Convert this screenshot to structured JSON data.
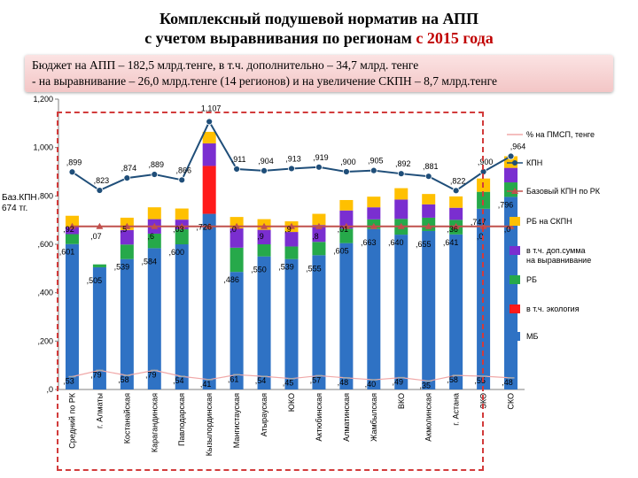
{
  "header": {
    "title_line1": "Комплексный подушевой норматив на АПП",
    "title_line2_start": "с учетом выравнивания по регионам ",
    "title_line2_year": "с 2015 года"
  },
  "budget_note": {
    "line1": "Бюджет на АПП – 182,5 млрд.тенге, в т.ч. дополнительно – 34,7 млрд. тенге",
    "line2": "- на выравнивание – 26,0 млрд.тенге (14 регионов) и на увеличение СКПН – 8,7 млрд.тенге"
  },
  "side_note": {
    "line1": "Баз.КПН",
    "line2": "674 тг."
  },
  "colors": {
    "mb": "#2f72c4",
    "ecology": "#ff1a1a",
    "rb": "#26a94a",
    "dop": "#7a2ed0",
    "rb_skpn": "#ffc000",
    "kpn": "#1f4e79",
    "base": "#c0504d",
    "pmsp": "#f0a8a8"
  },
  "chart_data": {
    "type": "bar",
    "ylim": [
      0,
      1200
    ],
    "yticks": [
      ",0",
      ",200",
      ",400",
      ",600",
      ",800",
      "1,000",
      "1,200"
    ],
    "categories": [
      "Средний по РК",
      "г. Алматы",
      "Костанайская",
      "Карагандинская",
      "Павлодарская",
      "Кызылординская",
      "Мангистауская",
      "Атырауская",
      "ЮКО",
      "Актюбинская",
      "Алматинская",
      "Жамбылская",
      "ВКО",
      "Акмолинская",
      "г. Астана",
      "ЗКО",
      "СКО"
    ],
    "stack_series": [
      {
        "name": "МБ",
        "key": "mb",
        "values": [
          601,
          505,
          539,
          584,
          600,
          726,
          486,
          550,
          539,
          555,
          605,
          663,
          640,
          655,
          641,
          747,
          796
        ]
      },
      {
        "name": "в т.ч. экология",
        "key": "ecology",
        "values": [
          0,
          0,
          0,
          0,
          0,
          198,
          0,
          0,
          0,
          0,
          0,
          0,
          0,
          0,
          0,
          0,
          0
        ]
      },
      {
        "name": "РБ",
        "key": "rb",
        "values": [
          41,
          12,
          60,
          60,
          62,
          0,
          100,
          50,
          52,
          55,
          60,
          40,
          65,
          55,
          60,
          70,
          60
        ]
      },
      {
        "name": "в т.ч. доп.сумма на выравнивание",
        "key": "dop",
        "values": [
          30,
          0,
          60,
          60,
          40,
          93,
          80,
          60,
          60,
          70,
          75,
          50,
          80,
          55,
          50,
          0,
          60
        ]
      },
      {
        "name": "РБ на СКПН",
        "key": "rb_skpn",
        "values": [
          46,
          0,
          51,
          49,
          46,
          48,
          47,
          44,
          44,
          46,
          43,
          44,
          47,
          43,
          47,
          55,
          48
        ]
      }
    ],
    "line_series": [
      {
        "name": "КПН",
        "key": "kpn",
        "values": [
          899,
          823,
          874,
          889,
          866,
          1107,
          911,
          904,
          913,
          919,
          900,
          905,
          892,
          881,
          822,
          900,
          964
        ]
      },
      {
        "name": "Базовый КПН по РК",
        "key": "base",
        "values": [
          674,
          674,
          674,
          674,
          674,
          674,
          674,
          674,
          674,
          674,
          674,
          674,
          674,
          674,
          674,
          674,
          674
        ]
      },
      {
        "name": "% на ПМСП, тенге",
        "key": "pmsp",
        "values": [
          53,
          79,
          58,
          79,
          54,
          41,
          61,
          54,
          45,
          57,
          48,
          40,
          49,
          35,
          58,
          55,
          48
        ]
      }
    ],
    "kpn_labels": [
      ",899",
      ",823",
      ",874",
      ",889",
      ",866",
      "1,107",
      ",911",
      ",904",
      ",913",
      ",919",
      ",900",
      ",905",
      ",892",
      ",881",
      ",822",
      ",900",
      ",964"
    ],
    "mb_labels": [
      ",601",
      ",505",
      ",539",
      ",584",
      ",600",
      ",726",
      ",486",
      ",550",
      ",539",
      ",555",
      ",605",
      ",663",
      ",640",
      ",655",
      ",641",
      ",747",
      ",796"
    ],
    "pmsp_labels": [
      ",53",
      ",79",
      ",58",
      ",79",
      ",54",
      ",41",
      ",61",
      ",54",
      ",45",
      ",57",
      ",48",
      ",40",
      ",49",
      ",35",
      ",58",
      ",55",
      ",48"
    ],
    "mid_labels": [
      ",92",
      ",07",
      ",5",
      ",6",
      ",03",
      "",
      ",0",
      ",9",
      ",9",
      ",8",
      ",01",
      "",
      "",
      "",
      ",36",
      ",0",
      ",0"
    ],
    "legend": [
      {
        "label": "% на ПМСП, тенге",
        "key": "pmsp",
        "type": "line"
      },
      {
        "label": "КПН",
        "key": "kpn",
        "type": "line"
      },
      {
        "label": "Базовый КПН по РК",
        "key": "base",
        "type": "line"
      },
      {
        "label": "РБ на СКПН",
        "key": "rb_skpn",
        "type": "box"
      },
      {
        "label": "в т.ч. доп.сумма на выравнивание",
        "key": "dop",
        "type": "box"
      },
      {
        "label": "РБ",
        "key": "rb",
        "type": "box"
      },
      {
        "label": "в т.ч. экология",
        "key": "ecology",
        "type": "box"
      },
      {
        "label": "МБ",
        "key": "mb",
        "type": "box"
      }
    ]
  }
}
